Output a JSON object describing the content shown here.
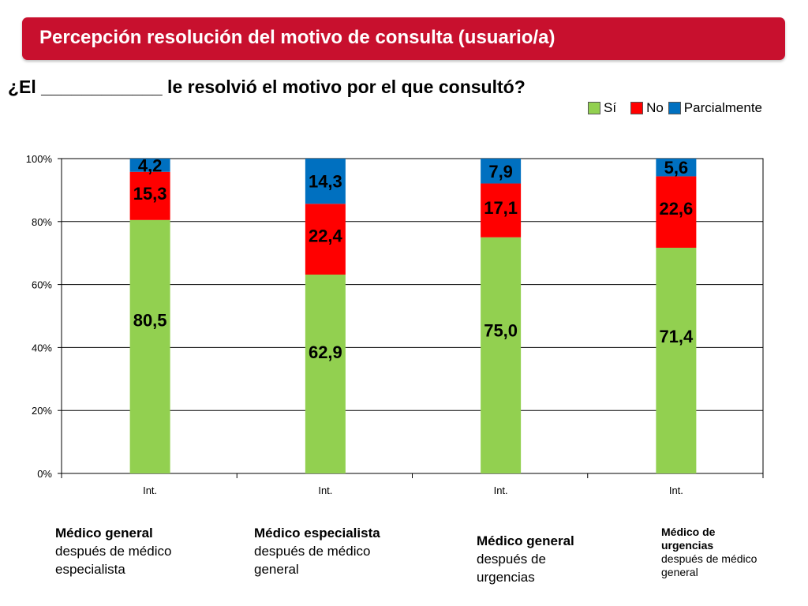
{
  "header": {
    "title": "Percepción resolución del motivo de consulta (usuario/a)"
  },
  "question": "¿El ____________ le resolvió el motivo por el que consultó?",
  "legend": [
    {
      "label": "Sí",
      "color": "#92d050"
    },
    {
      "label": "No",
      "color": "#ff0000"
    },
    {
      "label": "Parcialmente",
      "color": "#0070c0"
    }
  ],
  "group_labels": [
    {
      "bold": "Médico general",
      "rest": "después de médico especialista"
    },
    {
      "bold": "Médico especialista",
      "rest": "después de médico general"
    },
    {
      "bold": "Médico general",
      "rest": "después de urgencias"
    },
    {
      "bold": "Médico de urgencias",
      "rest": "después de médico general"
    }
  ],
  "chart_data": {
    "type": "bar",
    "stacked": true,
    "percent_stacked": true,
    "categories": [
      "Int.",
      "Int.",
      "Int.",
      "Int."
    ],
    "series": [
      {
        "name": "Sí",
        "color": "#92d050",
        "values": [
          80.5,
          62.9,
          75.0,
          71.4
        ],
        "labels": [
          "80,5",
          "62,9",
          "75,0",
          "71,4"
        ]
      },
      {
        "name": "No",
        "color": "#ff0000",
        "values": [
          15.3,
          22.4,
          17.1,
          22.6
        ],
        "labels": [
          "15,3",
          "22,4",
          "17,1",
          "22,6"
        ]
      },
      {
        "name": "Parcialmente",
        "color": "#0070c0",
        "values": [
          4.2,
          14.3,
          7.9,
          5.6
        ],
        "labels": [
          "4,2",
          "14,3",
          "7,9",
          "5,6"
        ]
      }
    ],
    "ylim": [
      0,
      100
    ],
    "yticks": [
      "0%",
      "20%",
      "40%",
      "60%",
      "80%",
      "100%"
    ],
    "grid": true,
    "legend_position": "top-right"
  }
}
